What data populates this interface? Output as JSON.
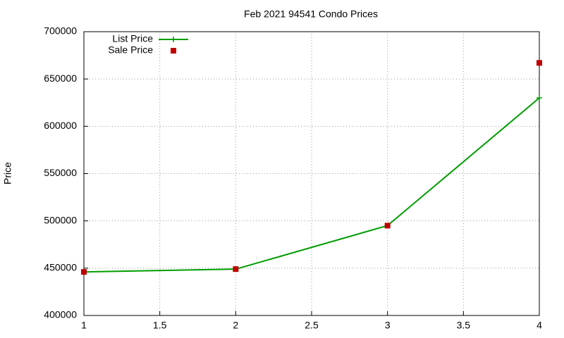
{
  "chart_data": {
    "type": "line",
    "title": "Feb 2021 94541 Condo Prices",
    "ylabel": "Price",
    "x": [
      1,
      2,
      3,
      4
    ],
    "series": [
      {
        "name": "List Price",
        "color": "#009e00",
        "marker": "plus",
        "line": true,
        "values": [
          446000,
          449000,
          495000,
          630000
        ]
      },
      {
        "name": "Sale Price",
        "color": "#c00000",
        "marker": "square",
        "line": false,
        "values": [
          446000,
          449000,
          495000,
          667000
        ]
      }
    ],
    "xlim": [
      1,
      4
    ],
    "xticks": [
      1,
      1.5,
      2,
      2.5,
      3,
      3.5,
      4
    ],
    "ylim": [
      400000,
      700000
    ],
    "yticks": [
      400000,
      450000,
      500000,
      550000,
      600000,
      650000,
      700000
    ],
    "grid": true,
    "legend": "top-left"
  }
}
